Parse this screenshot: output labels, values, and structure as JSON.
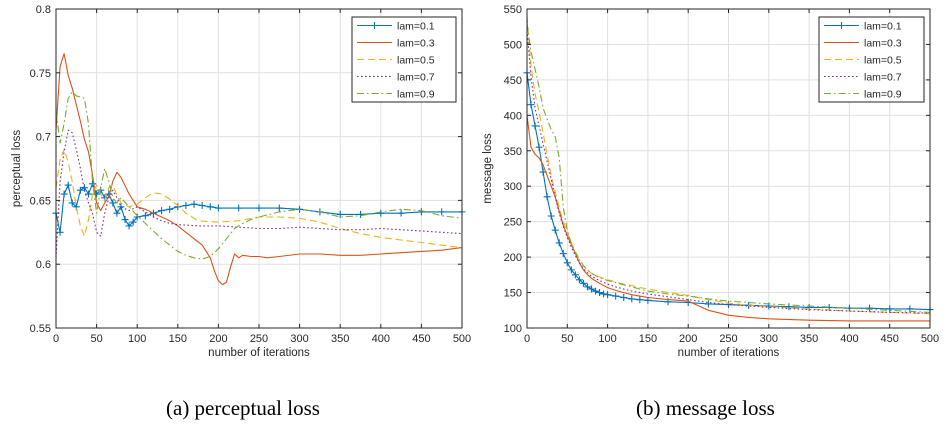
{
  "chart_data": [
    {
      "type": "line",
      "title": "",
      "xlabel": "number of iterations",
      "ylabel": "perceptual loss",
      "xlim": [
        0,
        500
      ],
      "ylim": [
        0.55,
        0.8
      ],
      "xticks": [
        0,
        50,
        100,
        150,
        200,
        250,
        300,
        350,
        400,
        450,
        500
      ],
      "yticks": [
        0.55,
        0.6,
        0.65,
        0.7,
        0.75,
        0.8
      ],
      "ytick_labels": [
        "0.55",
        "0.6",
        "0.65",
        "0.7",
        "0.75",
        "0.8"
      ],
      "grid": true,
      "legend_position": "top-right",
      "series": [
        {
          "name": "lam=0.1",
          "color": "#0072bd",
          "style": "solid",
          "marker": "plus",
          "x": [
            0,
            5,
            10,
            15,
            20,
            25,
            30,
            35,
            40,
            45,
            50,
            55,
            60,
            65,
            70,
            75,
            80,
            85,
            90,
            95,
            100,
            110,
            120,
            130,
            140,
            150,
            160,
            170,
            180,
            190,
            200,
            225,
            250,
            275,
            300,
            325,
            350,
            375,
            400,
            425,
            450,
            475,
            500
          ],
          "y": [
            0.64,
            0.625,
            0.655,
            0.662,
            0.648,
            0.645,
            0.658,
            0.66,
            0.655,
            0.663,
            0.655,
            0.658,
            0.652,
            0.655,
            0.648,
            0.64,
            0.645,
            0.635,
            0.63,
            0.633,
            0.637,
            0.638,
            0.64,
            0.642,
            0.643,
            0.645,
            0.646,
            0.647,
            0.646,
            0.645,
            0.644,
            0.644,
            0.644,
            0.644,
            0.643,
            0.641,
            0.639,
            0.639,
            0.64,
            0.64,
            0.641,
            0.641,
            0.641
          ]
        },
        {
          "name": "lam=0.3",
          "color": "#d95319",
          "style": "solid",
          "marker": "none",
          "x": [
            0,
            5,
            10,
            15,
            20,
            25,
            30,
            35,
            40,
            45,
            50,
            55,
            60,
            65,
            70,
            75,
            80,
            90,
            100,
            110,
            120,
            130,
            140,
            150,
            160,
            170,
            180,
            190,
            195,
            200,
            205,
            210,
            215,
            220,
            225,
            230,
            240,
            250,
            260,
            275,
            300,
            325,
            350,
            375,
            400,
            425,
            450,
            475,
            500
          ],
          "y": [
            0.705,
            0.755,
            0.765,
            0.748,
            0.738,
            0.725,
            0.712,
            0.698,
            0.688,
            0.67,
            0.648,
            0.642,
            0.648,
            0.653,
            0.665,
            0.672,
            0.668,
            0.655,
            0.645,
            0.643,
            0.64,
            0.637,
            0.634,
            0.63,
            0.625,
            0.62,
            0.615,
            0.605,
            0.595,
            0.587,
            0.584,
            0.586,
            0.598,
            0.608,
            0.605,
            0.607,
            0.606,
            0.606,
            0.605,
            0.606,
            0.608,
            0.608,
            0.607,
            0.607,
            0.608,
            0.609,
            0.61,
            0.611,
            0.613
          ]
        },
        {
          "name": "lam=0.5",
          "color": "#edb120",
          "style": "dashed",
          "marker": "none",
          "x": [
            0,
            5,
            10,
            15,
            20,
            25,
            30,
            35,
            40,
            45,
            50,
            55,
            60,
            65,
            70,
            75,
            80,
            90,
            100,
            110,
            120,
            130,
            140,
            150,
            160,
            175,
            200,
            225,
            250,
            275,
            300,
            325,
            350,
            375,
            400,
            425,
            450,
            475,
            500
          ],
          "y": [
            0.66,
            0.682,
            0.69,
            0.68,
            0.665,
            0.645,
            0.63,
            0.622,
            0.635,
            0.655,
            0.662,
            0.655,
            0.65,
            0.66,
            0.662,
            0.654,
            0.648,
            0.645,
            0.647,
            0.652,
            0.656,
            0.655,
            0.651,
            0.646,
            0.64,
            0.634,
            0.633,
            0.634,
            0.637,
            0.637,
            0.636,
            0.633,
            0.628,
            0.624,
            0.621,
            0.619,
            0.617,
            0.615,
            0.613
          ]
        },
        {
          "name": "lam=0.7",
          "color": "#7e2f8e",
          "style": "dotted",
          "marker": "none",
          "x": [
            0,
            5,
            10,
            15,
            20,
            25,
            30,
            35,
            40,
            45,
            50,
            55,
            60,
            65,
            70,
            75,
            80,
            90,
            100,
            110,
            120,
            130,
            140,
            150,
            175,
            200,
            225,
            250,
            275,
            300,
            325,
            350,
            375,
            400,
            425,
            450,
            475,
            500
          ],
          "y": [
            0.605,
            0.665,
            0.688,
            0.705,
            0.703,
            0.69,
            0.675,
            0.658,
            0.648,
            0.64,
            0.625,
            0.622,
            0.64,
            0.652,
            0.658,
            0.652,
            0.645,
            0.642,
            0.645,
            0.641,
            0.637,
            0.634,
            0.632,
            0.631,
            0.63,
            0.63,
            0.629,
            0.628,
            0.628,
            0.629,
            0.628,
            0.627,
            0.627,
            0.628,
            0.627,
            0.626,
            0.625,
            0.624
          ]
        },
        {
          "name": "lam=0.9",
          "color": "#77ac30",
          "style": "dashdot",
          "marker": "none",
          "x": [
            0,
            5,
            10,
            15,
            20,
            25,
            30,
            35,
            40,
            45,
            50,
            55,
            60,
            65,
            70,
            75,
            80,
            90,
            100,
            110,
            120,
            130,
            140,
            150,
            160,
            170,
            180,
            190,
            200,
            210,
            220,
            230,
            240,
            250,
            275,
            300,
            325,
            350,
            375,
            400,
            425,
            450,
            475,
            500
          ],
          "y": [
            0.72,
            0.695,
            0.71,
            0.73,
            0.735,
            0.732,
            0.731,
            0.73,
            0.71,
            0.665,
            0.64,
            0.66,
            0.675,
            0.665,
            0.652,
            0.648,
            0.652,
            0.645,
            0.638,
            0.632,
            0.626,
            0.62,
            0.615,
            0.61,
            0.607,
            0.605,
            0.604,
            0.606,
            0.612,
            0.62,
            0.628,
            0.632,
            0.635,
            0.637,
            0.641,
            0.643,
            0.641,
            0.637,
            0.638,
            0.641,
            0.643,
            0.642,
            0.638,
            0.636
          ]
        }
      ]
    },
    {
      "type": "line",
      "title": "",
      "xlabel": "number of iterations",
      "ylabel": "message loss",
      "xlim": [
        0,
        500
      ],
      "ylim": [
        100,
        550
      ],
      "xticks": [
        0,
        50,
        100,
        150,
        200,
        250,
        300,
        350,
        400,
        450,
        500
      ],
      "yticks": [
        100,
        150,
        200,
        250,
        300,
        350,
        400,
        450,
        500,
        550
      ],
      "ytick_labels": [
        "100",
        "150",
        "200",
        "250",
        "300",
        "350",
        "400",
        "450",
        "500",
        "550"
      ],
      "grid": true,
      "legend_position": "top-right",
      "series": [
        {
          "name": "lam=0.1",
          "color": "#0072bd",
          "style": "solid",
          "marker": "plus",
          "x": [
            0,
            5,
            10,
            15,
            20,
            25,
            30,
            35,
            40,
            45,
            50,
            55,
            60,
            65,
            70,
            75,
            80,
            85,
            90,
            95,
            100,
            110,
            120,
            130,
            140,
            150,
            175,
            200,
            225,
            250,
            275,
            300,
            325,
            350,
            375,
            400,
            425,
            450,
            475,
            500
          ],
          "y": [
            460,
            415,
            385,
            355,
            320,
            285,
            258,
            238,
            220,
            205,
            192,
            182,
            175,
            168,
            163,
            158,
            155,
            152,
            150,
            148,
            147,
            145,
            143,
            141,
            140,
            139,
            137,
            136,
            134,
            133,
            132,
            131,
            130,
            129,
            129,
            128,
            128,
            127,
            127,
            126
          ]
        },
        {
          "name": "lam=0.3",
          "color": "#d95319",
          "style": "solid",
          "marker": "none",
          "x": [
            0,
            5,
            10,
            15,
            20,
            25,
            30,
            35,
            40,
            45,
            50,
            55,
            60,
            65,
            70,
            75,
            80,
            90,
            100,
            110,
            120,
            130,
            140,
            150,
            175,
            200,
            225,
            250,
            275,
            300,
            350,
            400,
            450,
            500
          ],
          "y": [
            400,
            355,
            345,
            340,
            330,
            315,
            300,
            285,
            265,
            245,
            230,
            218,
            205,
            192,
            182,
            175,
            170,
            163,
            157,
            153,
            150,
            147,
            145,
            143,
            140,
            138,
            125,
            118,
            115,
            113,
            111,
            110,
            110,
            110
          ]
        },
        {
          "name": "lam=0.5",
          "color": "#edb120",
          "style": "dashed",
          "marker": "none",
          "x": [
            0,
            5,
            10,
            15,
            20,
            25,
            30,
            35,
            40,
            45,
            50,
            55,
            60,
            65,
            70,
            75,
            80,
            90,
            100,
            110,
            120,
            130,
            140,
            150,
            175,
            200,
            225,
            250,
            275,
            300,
            350,
            400,
            450,
            500
          ],
          "y": [
            540,
            470,
            430,
            405,
            375,
            345,
            315,
            292,
            270,
            250,
            235,
            220,
            208,
            197,
            188,
            182,
            177,
            172,
            168,
            165,
            162,
            160,
            157,
            155,
            150,
            146,
            140,
            135,
            132,
            130,
            127,
            124,
            122,
            120
          ]
        },
        {
          "name": "lam=0.7",
          "color": "#7e2f8e",
          "style": "dotted",
          "marker": "none",
          "x": [
            0,
            5,
            10,
            15,
            20,
            25,
            30,
            35,
            40,
            45,
            50,
            55,
            60,
            65,
            70,
            75,
            80,
            90,
            100,
            110,
            120,
            130,
            140,
            150,
            175,
            200,
            225,
            250,
            275,
            300,
            350,
            400,
            450,
            500
          ],
          "y": [
            520,
            455,
            410,
            385,
            360,
            335,
            310,
            285,
            262,
            243,
            228,
            214,
            202,
            192,
            184,
            178,
            173,
            167,
            162,
            158,
            155,
            152,
            150,
            148,
            144,
            140,
            136,
            133,
            131,
            129,
            126,
            124,
            122,
            121
          ]
        },
        {
          "name": "lam=0.9",
          "color": "#77ac30",
          "style": "dashdot",
          "marker": "none",
          "x": [
            0,
            5,
            10,
            15,
            20,
            25,
            30,
            35,
            40,
            45,
            50,
            55,
            60,
            65,
            70,
            75,
            80,
            90,
            100,
            110,
            120,
            130,
            140,
            150,
            175,
            200,
            225,
            250,
            275,
            300,
            350,
            400,
            450,
            500
          ],
          "y": [
            530,
            490,
            465,
            440,
            410,
            395,
            380,
            370,
            340,
            270,
            238,
            220,
            206,
            196,
            188,
            182,
            177,
            171,
            167,
            164,
            161,
            158,
            155,
            152,
            148,
            145,
            141,
            138,
            136,
            134,
            131,
            128,
            125,
            122
          ]
        }
      ]
    }
  ],
  "captions": [
    "(a) perceptual loss",
    "(b) message loss"
  ]
}
